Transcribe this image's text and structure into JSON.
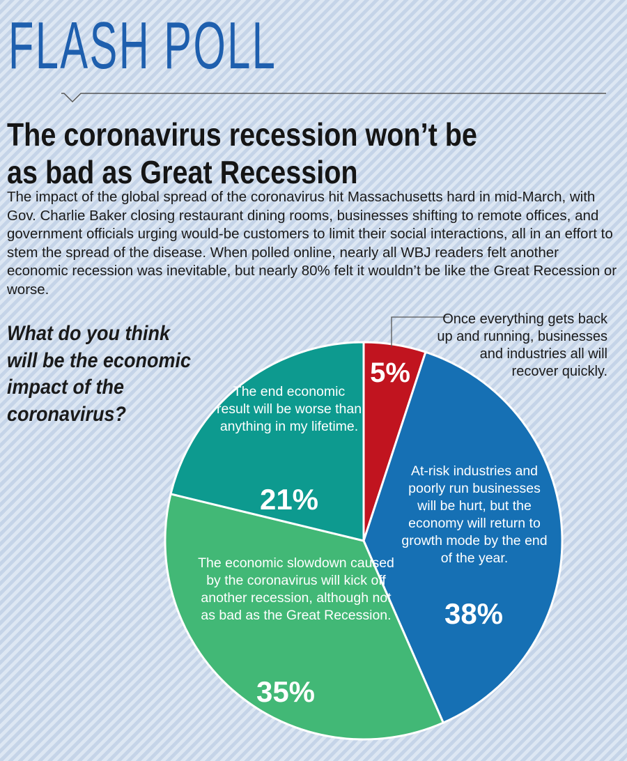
{
  "header": {
    "kicker": "FLASH POLL",
    "headline": "The coronavirus recession won’t be as bad as Great Recession",
    "body": "The impact of the global spread of the coronavirus hit Massachusetts hard in mid-March, with Gov. Charlie Baker closing restaurant dining rooms, businesses shifting to remote offices, and government officials urging would-be customers to limit their social interactions, all in an effort to stem the spread of the disease. When polled online, nearly all WBJ readers felt another economic recession was inevitable, but nearly 80% felt it wouldn’t be like the Great Recession or worse."
  },
  "question": "What do you think will be the economic impact of the coronavirus?",
  "colors": {
    "background": "#d4e0ef",
    "kicker": "#1e5fae",
    "red": "#c1141f",
    "blue": "#1670b4",
    "green": "#42b876",
    "teal": "#0d9a8f"
  },
  "chart_data": {
    "type": "pie",
    "title": "",
    "slices": [
      {
        "label": "Once everything gets back up and running, businesses and industries all will recover quickly.",
        "value": 5,
        "value_label": "5%",
        "color": "#c1141f"
      },
      {
        "label": "At-risk industries and poorly run businesses will be hurt, but the economy will return to growth mode by the end of the year.",
        "value": 38,
        "value_label": "38%",
        "color": "#1670b4"
      },
      {
        "label": "The economic slowdown caused by the coronavirus will kick off another recession, although not as bad as the Great Recession.",
        "value": 35,
        "value_label": "35%",
        "color": "#42b876"
      },
      {
        "label": "The end economic result will be worse than anything in my lifetime.",
        "value": 21,
        "value_label": "21%",
        "color": "#0d9a8f"
      }
    ]
  }
}
